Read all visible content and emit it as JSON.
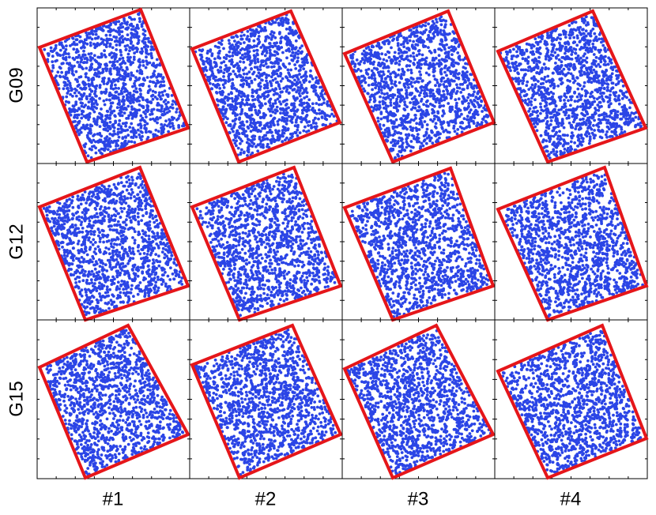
{
  "rows": [
    "G09",
    "G12",
    "G15"
  ],
  "columns": [
    "#1",
    "#2",
    "#3",
    "#4"
  ]
}
